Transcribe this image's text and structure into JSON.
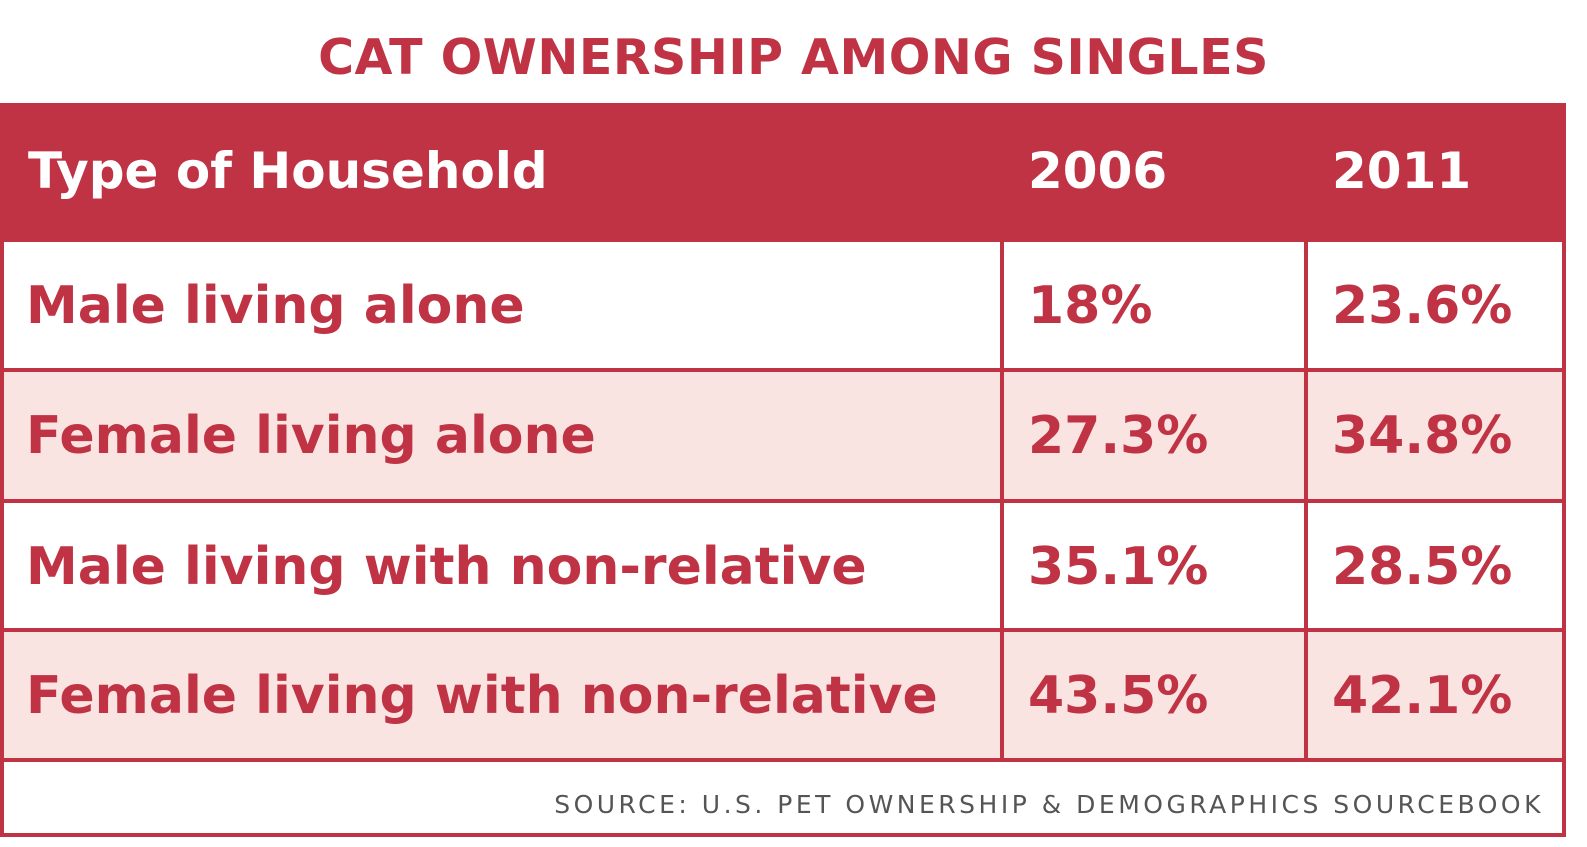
{
  "colors": {
    "accent": "#bf3344",
    "header_bg": "#bf3344",
    "header_text": "#ffffff",
    "row_alt_bg": "#f9e4e1",
    "row_bg": "#ffffff",
    "source_text": "#555555"
  },
  "chart_data": {
    "type": "table",
    "title": "CAT OWNERSHIP AMONG SINGLES",
    "columns": [
      "Type of Household",
      "2006",
      "2011"
    ],
    "rows": [
      [
        "Male living alone",
        "18%",
        "23.6%"
      ],
      [
        "Female living alone",
        "27.3%",
        "34.8%"
      ],
      [
        "Male living with non-relative",
        "35.1%",
        "28.5%"
      ],
      [
        "Female living with non-relative",
        "43.5%",
        "42.1%"
      ]
    ],
    "source": "SOURCE: U.S. PET OWNERSHIP & DEMOGRAPHICS SOURCEBOOK"
  }
}
